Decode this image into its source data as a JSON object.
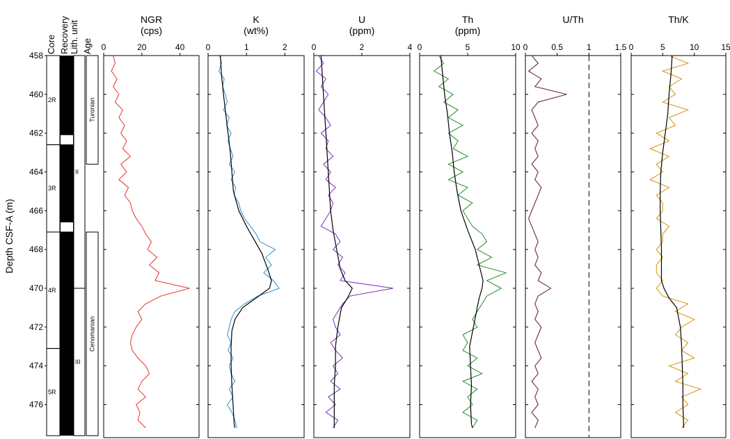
{
  "chart_data": {
    "type": "line",
    "ylabel": "Depth CSF-A (m)",
    "ylim": [
      458,
      477.7
    ],
    "yticks": [
      458,
      460,
      462,
      464,
      466,
      468,
      470,
      472,
      474,
      476
    ],
    "strat_columns": {
      "headers": [
        "Core",
        "Recovery",
        "Lith. unit",
        "Age"
      ],
      "cores": [
        {
          "label": "2R",
          "top": 458,
          "bottom": 462.6
        },
        {
          "label": "3R",
          "top": 462.6,
          "bottom": 467.1
        },
        {
          "label": "4R",
          "top": 467.1,
          "bottom": 473.1
        },
        {
          "label": "5R",
          "top": 473.1,
          "bottom": 477.6
        }
      ],
      "gaps": [
        [
          462.1,
          462.6
        ],
        [
          466.6,
          467.1
        ]
      ],
      "units": [
        {
          "label": "II",
          "top": 458,
          "bottom": 470.0
        },
        {
          "label": "III",
          "top": 470.0,
          "bottom": 477.6
        }
      ],
      "ages": [
        {
          "label": "Turonian",
          "top": 458,
          "bottom": 463.6
        },
        {
          "label": "Cenomanian",
          "top": 467.1,
          "bottom": 477.6
        }
      ]
    },
    "panels": [
      {
        "title": "NGR",
        "unit": "(cps)",
        "xlim": [
          0,
          50
        ],
        "xticks": [
          0,
          20,
          40
        ],
        "color": "#e8302a",
        "series": [
          {
            "depth": [
              458.0,
              458.4,
              458.8,
              459.2,
              459.6,
              460.0,
              460.4,
              460.8,
              461.2,
              461.6,
              462.0,
              462.4,
              462.8,
              463.2,
              463.6,
              464.0,
              464.4,
              464.8,
              465.2,
              465.6,
              466.0,
              466.4,
              466.8,
              467.2,
              467.6,
              468.0,
              468.4,
              468.8,
              469.2,
              469.6,
              470.0,
              470.4,
              470.8,
              471.2,
              471.6,
              472.0,
              472.4,
              472.8,
              473.2,
              473.6,
              474.0,
              474.4,
              474.8,
              475.2,
              475.6,
              476.0,
              476.4,
              476.8,
              477.2
            ],
            "values": [
              5,
              6,
              4,
              7,
              5,
              8,
              6,
              10,
              8,
              11,
              9,
              12,
              10,
              14,
              9,
              12,
              8,
              13,
              11,
              14,
              15,
              17,
              20,
              22,
              25,
              23,
              28,
              24,
              29,
              27,
              45,
              30,
              22,
              18,
              20,
              17,
              15,
              14,
              15,
              18,
              22,
              24,
              20,
              18,
              22,
              17,
              19,
              18,
              22
            ]
          }
        ]
      },
      {
        "title": "K",
        "unit": "(wt%)",
        "xlim": [
          0,
          2.5
        ],
        "xticks": [
          0,
          1,
          2
        ],
        "color": "#2f8fd1",
        "series": [
          {
            "depth": [
              458.0,
              458.4,
              458.8,
              459.2,
              459.6,
              460.0,
              460.4,
              460.8,
              461.2,
              461.6,
              462.0,
              462.4,
              462.8,
              463.2,
              463.6,
              464.0,
              464.4,
              464.8,
              465.2,
              465.6,
              466.0,
              466.4,
              466.8,
              467.2,
              467.6,
              468.0,
              468.4,
              468.8,
              469.2,
              469.6,
              470.0,
              470.4,
              470.8,
              471.2,
              471.6,
              472.0,
              472.4,
              472.8,
              473.2,
              473.6,
              474.0,
              474.4,
              474.8,
              475.2,
              475.6,
              476.0,
              476.4,
              476.8,
              477.2
            ],
            "values": [
              0.3,
              0.35,
              0.28,
              0.42,
              0.38,
              0.45,
              0.5,
              0.4,
              0.55,
              0.48,
              0.6,
              0.52,
              0.58,
              0.65,
              0.55,
              0.7,
              0.6,
              0.72,
              0.68,
              0.8,
              0.85,
              0.95,
              1.1,
              1.25,
              1.35,
              1.75,
              1.5,
              1.65,
              1.45,
              1.7,
              1.85,
              1.3,
              0.95,
              0.7,
              0.6,
              0.55,
              0.5,
              0.6,
              0.52,
              0.65,
              0.55,
              0.6,
              0.7,
              0.55,
              0.65,
              0.5,
              0.62,
              0.7,
              0.75
            ]
          },
          {
            "depth": [
              458.0,
              459.0,
              460.0,
              461.0,
              462.0,
              463.0,
              464.0,
              465.0,
              466.0,
              466.8,
              467.5,
              468.2,
              469.0,
              469.6,
              470.0,
              470.5,
              471.0,
              471.6,
              472.2,
              473.0,
              474.0,
              475.0,
              476.0,
              477.0,
              477.2
            ],
            "values": [
              0.32,
              0.35,
              0.4,
              0.46,
              0.52,
              0.58,
              0.62,
              0.66,
              0.8,
              1.0,
              1.2,
              1.4,
              1.55,
              1.65,
              1.6,
              1.25,
              0.9,
              0.7,
              0.62,
              0.6,
              0.6,
              0.62,
              0.65,
              0.68,
              0.7
            ]
          }
        ]
      },
      {
        "title": "U",
        "unit": "(ppm)",
        "xlim": [
          0,
          4
        ],
        "xticks": [
          0,
          2,
          4
        ],
        "color": "#7a2fc0",
        "series": [
          {
            "depth": [
              458.0,
              458.4,
              458.8,
              459.2,
              459.6,
              460.0,
              460.4,
              460.8,
              461.2,
              461.6,
              462.0,
              462.4,
              462.8,
              463.2,
              463.6,
              464.0,
              464.4,
              464.8,
              465.2,
              465.6,
              466.0,
              466.4,
              466.8,
              467.2,
              467.6,
              468.0,
              468.4,
              468.8,
              469.2,
              469.6,
              470.0,
              470.4,
              470.8,
              471.2,
              471.6,
              472.0,
              472.4,
              472.8,
              473.2,
              473.6,
              474.0,
              474.4,
              474.8,
              475.2,
              475.6,
              476.0,
              476.4,
              476.8,
              477.2
            ],
            "values": [
              0.2,
              0.4,
              0.1,
              0.5,
              0.3,
              0.6,
              0.4,
              0.2,
              0.5,
              0.7,
              0.3,
              0.6,
              0.5,
              0.8,
              0.4,
              0.7,
              0.5,
              0.9,
              0.6,
              0.8,
              0.7,
              0.5,
              0.3,
              0.9,
              1.1,
              0.8,
              1.2,
              1.0,
              1.3,
              1.1,
              3.3,
              1.5,
              1.2,
              1.0,
              0.8,
              0.9,
              1.1,
              0.7,
              0.9,
              1.2,
              0.8,
              1.0,
              0.7,
              1.1,
              0.6,
              0.9,
              0.5,
              1.0,
              0.8
            ]
          },
          {
            "depth": [
              458.0,
              459.0,
              460.0,
              461.0,
              462.0,
              463.0,
              464.0,
              465.0,
              466.0,
              467.0,
              468.0,
              469.0,
              469.6,
              470.0,
              470.5,
              471.0,
              472.0,
              473.0,
              474.0,
              475.0,
              476.0,
              477.0,
              477.2
            ],
            "values": [
              0.3,
              0.35,
              0.4,
              0.45,
              0.5,
              0.55,
              0.6,
              0.65,
              0.7,
              0.8,
              0.95,
              1.1,
              1.3,
              1.6,
              1.4,
              1.15,
              1.0,
              0.9,
              0.9,
              0.85,
              0.85,
              0.85,
              0.85
            ]
          }
        ]
      },
      {
        "title": "Th",
        "unit": "(ppm)",
        "xlim": [
          0,
          10
        ],
        "xticks": [
          0,
          5,
          10
        ],
        "color": "#2a8a2a",
        "series": [
          {
            "depth": [
              458.0,
              458.4,
              458.8,
              459.2,
              459.6,
              460.0,
              460.4,
              460.8,
              461.2,
              461.6,
              462.0,
              462.4,
              462.8,
              463.2,
              463.6,
              464.0,
              464.4,
              464.8,
              465.2,
              465.6,
              466.0,
              466.4,
              466.8,
              467.2,
              467.6,
              468.0,
              468.4,
              468.8,
              469.2,
              469.6,
              470.0,
              470.4,
              470.8,
              471.2,
              471.6,
              472.0,
              472.4,
              472.8,
              473.2,
              473.6,
              474.0,
              474.4,
              474.8,
              475.2,
              475.6,
              476.0,
              476.4,
              476.8,
              477.2
            ],
            "values": [
              2,
              2.5,
              1.5,
              3,
              2,
              3.5,
              2.5,
              4,
              3,
              4.5,
              3,
              4,
              3.5,
              5,
              3,
              4.5,
              3,
              5,
              4,
              5.5,
              4.5,
              5,
              5.5,
              6.5,
              7,
              6,
              7.5,
              6,
              9,
              7,
              8.5,
              7,
              6.5,
              6,
              5.5,
              6,
              4.5,
              5,
              4.5,
              6,
              5,
              6.5,
              4.5,
              6,
              5,
              5.5,
              4.5,
              6,
              5.5
            ]
          },
          {
            "depth": [
              458.0,
              459.0,
              460.0,
              461.0,
              462.0,
              463.0,
              464.0,
              465.0,
              466.0,
              467.0,
              468.0,
              469.0,
              469.6,
              470.0,
              470.5,
              471.0,
              472.0,
              473.0,
              474.0,
              475.0,
              476.0,
              477.0,
              477.2
            ],
            "values": [
              2.2,
              2.4,
              2.6,
              2.9,
              3.1,
              3.4,
              3.6,
              3.9,
              4.3,
              5.0,
              5.8,
              6.3,
              6.6,
              6.5,
              6.2,
              6.0,
              5.6,
              5.2,
              5.3,
              5.4,
              5.3,
              5.4,
              5.5
            ]
          }
        ]
      },
      {
        "title": "U/Th",
        "unit": "",
        "xlim": [
          0,
          1.5
        ],
        "xticks": [
          0,
          0.5,
          1,
          1.5
        ],
        "xticklabels": [
          "0",
          "0.5",
          "1",
          "1.5"
        ],
        "color": "#5a1a1a",
        "reference_x": 1,
        "series": [
          {
            "depth": [
              458.0,
              458.4,
              458.8,
              459.2,
              459.6,
              460.0,
              460.4,
              460.8,
              461.2,
              461.6,
              462.0,
              462.4,
              462.8,
              463.2,
              463.6,
              464.0,
              464.4,
              464.8,
              465.2,
              465.6,
              466.0,
              466.4,
              466.8,
              467.2,
              467.6,
              468.0,
              468.4,
              468.8,
              469.2,
              469.6,
              470.0,
              470.4,
              470.8,
              471.2,
              471.6,
              472.0,
              472.4,
              472.8,
              473.2,
              473.6,
              474.0,
              474.4,
              474.8,
              475.2,
              475.6,
              476.0,
              476.4,
              476.8,
              477.2
            ],
            "values": [
              0.1,
              0.2,
              0.05,
              0.25,
              0.15,
              0.65,
              0.2,
              0.1,
              0.15,
              0.2,
              0.1,
              0.2,
              0.15,
              0.2,
              0.1,
              0.2,
              0.15,
              0.25,
              0.2,
              0.15,
              0.1,
              0.05,
              0.1,
              0.15,
              0.2,
              0.15,
              0.2,
              0.15,
              0.25,
              0.2,
              0.4,
              0.2,
              0.15,
              0.2,
              0.15,
              0.25,
              0.2,
              0.15,
              0.2,
              0.25,
              0.15,
              0.2,
              0.1,
              0.2,
              0.15,
              0.2,
              0.1,
              0.2,
              0.15
            ]
          }
        ]
      },
      {
        "title": "Th/K",
        "unit": "",
        "xlim": [
          0,
          15
        ],
        "xticks": [
          0,
          5,
          10,
          15
        ],
        "color": "#d4900a",
        "series": [
          {
            "depth": [
              458.0,
              458.4,
              458.8,
              459.2,
              459.6,
              460.0,
              460.4,
              460.8,
              461.2,
              461.6,
              462.0,
              462.4,
              462.8,
              463.2,
              463.6,
              464.0,
              464.4,
              464.8,
              465.2,
              465.6,
              466.0,
              466.4,
              466.8,
              467.2,
              467.6,
              468.0,
              468.4,
              468.8,
              469.2,
              469.6,
              470.0,
              470.4,
              470.8,
              471.2,
              471.6,
              472.0,
              472.4,
              472.8,
              473.2,
              473.6,
              474.0,
              474.4,
              474.8,
              475.2,
              475.6,
              476.0,
              476.4,
              476.8,
              477.2
            ],
            "values": [
              6,
              9,
              5,
              8,
              6,
              7,
              5,
              9,
              6,
              7,
              4,
              6,
              3,
              6,
              4,
              5,
              3,
              6,
              4,
              5,
              5,
              4,
              6,
              5,
              5,
              4,
              5,
              4,
              4,
              5,
              4,
              5,
              9,
              7,
              10,
              8,
              7,
              9,
              8,
              10,
              6,
              9,
              7,
              11,
              8,
              9,
              7,
              9,
              8
            ]
          },
          {
            "depth": [
              458.0,
              459.0,
              460.0,
              461.0,
              462.0,
              463.0,
              464.0,
              465.0,
              466.0,
              467.0,
              468.0,
              469.0,
              469.6,
              470.0,
              470.5,
              471.0,
              472.0,
              473.0,
              474.0,
              475.0,
              476.0,
              477.0,
              477.2
            ],
            "values": [
              6.5,
              6.3,
              6.0,
              5.8,
              5.4,
              5.0,
              4.7,
              4.6,
              4.6,
              4.7,
              4.8,
              4.8,
              4.8,
              5.2,
              6.0,
              7.2,
              7.8,
              8.0,
              8.1,
              8.2,
              8.2,
              8.3,
              8.3
            ]
          }
        ]
      }
    ]
  }
}
